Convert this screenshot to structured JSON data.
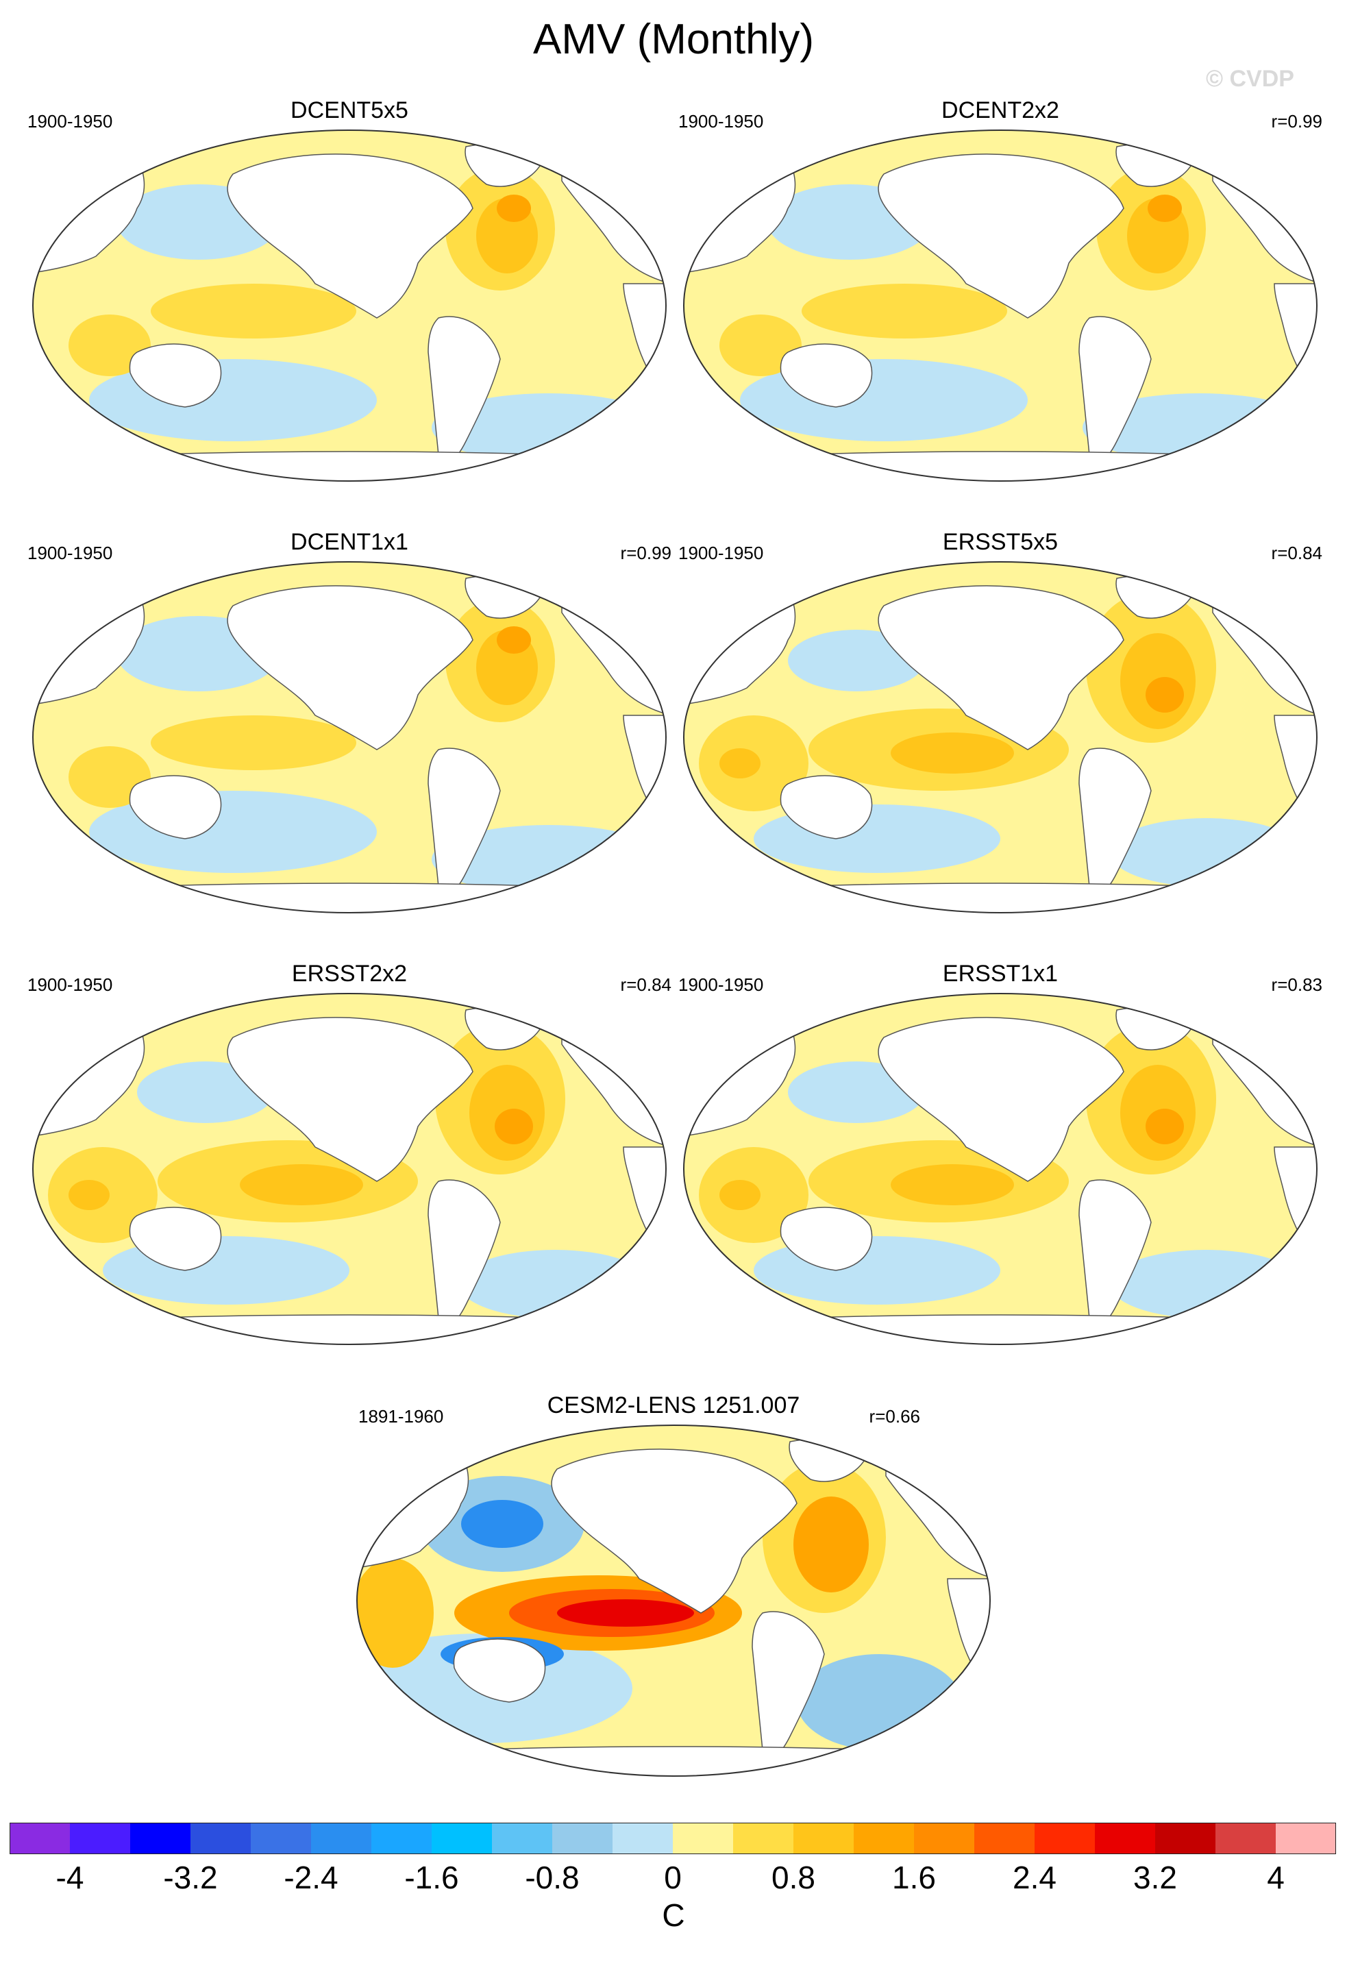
{
  "title": "AMV (Monthly)",
  "watermark": "© CVDP",
  "panels": [
    {
      "name": "DCENT5x5",
      "period": "1900-1950",
      "correlation": ""
    },
    {
      "name": "DCENT2x2",
      "period": "1900-1950",
      "correlation": "r=0.99"
    },
    {
      "name": "DCENT1x1",
      "period": "1900-1950",
      "correlation": "r=0.99"
    },
    {
      "name": "ERSST5x5",
      "period": "1900-1950",
      "correlation": "r=0.84"
    },
    {
      "name": "ERSST2x2",
      "period": "1900-1950",
      "correlation": "r=0.84"
    },
    {
      "name": "ERSST1x1",
      "period": "1900-1950",
      "correlation": "r=0.83"
    },
    {
      "name": "CESM2-LENS 1251.007",
      "period": "1891-1960",
      "correlation": "r=0.66"
    }
  ],
  "colorbar": {
    "unit": "C",
    "ticks": [
      "-4",
      "-3.2",
      "-2.4",
      "-1.6",
      "-0.8",
      "0",
      "0.8",
      "1.6",
      "2.4",
      "3.2",
      "4"
    ],
    "colors": [
      "#8a2be2",
      "#4b1cff",
      "#0000ff",
      "#2b4fdf",
      "#3a72e6",
      "#2a8ef0",
      "#1aa6ff",
      "#00c0ff",
      "#5ec3f5",
      "#95cbeb",
      "#bde3f6",
      "#fff59a",
      "#ffdd45",
      "#ffc51a",
      "#ffa500",
      "#ff8c00",
      "#ff5a00",
      "#ff2a00",
      "#e80000",
      "#c40000",
      "#d94040",
      "#ffb3b3"
    ]
  }
}
